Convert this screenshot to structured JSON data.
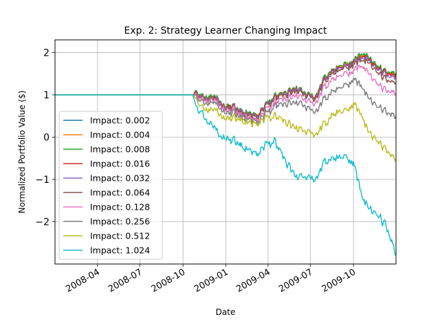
{
  "chart_data": {
    "type": "line",
    "title": "Exp. 2: Strategy Learner Changing Impact",
    "xlabel": "Date",
    "ylabel": "Normalized Portfolio Value ($)",
    "x_range": [
      "2008-01-01",
      "2009-12-31"
    ],
    "ylim": [
      -3.0,
      2.3
    ],
    "x_ticks": [
      {
        "date": "2008-04-01",
        "label": "2008-04"
      },
      {
        "date": "2008-07-01",
        "label": "2008-07"
      },
      {
        "date": "2008-10-01",
        "label": "2008-10"
      },
      {
        "date": "2009-01-01",
        "label": "2009-01"
      },
      {
        "date": "2009-04-01",
        "label": "2009-04"
      },
      {
        "date": "2009-07-01",
        "label": "2009-07"
      },
      {
        "date": "2009-10-01",
        "label": "2009-10"
      }
    ],
    "y_ticks": [
      {
        "value": 2,
        "label": "2"
      },
      {
        "value": 1,
        "label": "1"
      },
      {
        "value": 0,
        "label": "0"
      },
      {
        "value": -1,
        "label": "−1"
      },
      {
        "value": -2,
        "label": "−2"
      }
    ],
    "grid": true,
    "legend_position": "lower-left",
    "series": [
      {
        "name": "Impact: 0.002",
        "color": "#1f77b4",
        "points": [
          [
            "2008-01-01",
            1.0
          ],
          [
            "2008-10-22",
            1.0
          ],
          [
            "2008-10-29",
            1.05
          ],
          [
            "2008-11-10",
            0.95
          ],
          [
            "2008-11-25",
            0.92
          ],
          [
            "2008-12-15",
            0.9
          ],
          [
            "2008-12-31",
            0.72
          ],
          [
            "2009-01-15",
            0.75
          ],
          [
            "2009-02-01",
            0.62
          ],
          [
            "2009-02-20",
            0.55
          ],
          [
            "2009-03-09",
            0.5
          ],
          [
            "2009-03-25",
            0.72
          ],
          [
            "2009-04-15",
            0.95
          ],
          [
            "2009-05-10",
            1.05
          ],
          [
            "2009-06-01",
            1.15
          ],
          [
            "2009-06-20",
            1.0
          ],
          [
            "2009-07-10",
            0.9
          ],
          [
            "2009-08-01",
            1.4
          ],
          [
            "2009-08-20",
            1.6
          ],
          [
            "2009-09-15",
            1.7
          ],
          [
            "2009-10-01",
            1.8
          ],
          [
            "2009-10-20",
            1.95
          ],
          [
            "2009-11-01",
            1.85
          ],
          [
            "2009-11-20",
            1.65
          ],
          [
            "2009-12-10",
            1.52
          ],
          [
            "2009-12-31",
            1.5
          ]
        ]
      },
      {
        "name": "Impact: 0.004",
        "color": "#ff7f0e",
        "points": [
          [
            "2008-01-01",
            1.0
          ],
          [
            "2008-10-22",
            1.0
          ],
          [
            "2008-10-29",
            1.06
          ],
          [
            "2008-11-10",
            0.96
          ],
          [
            "2008-11-25",
            0.93
          ],
          [
            "2008-12-15",
            0.91
          ],
          [
            "2008-12-31",
            0.73
          ],
          [
            "2009-01-15",
            0.76
          ],
          [
            "2009-02-01",
            0.63
          ],
          [
            "2009-02-20",
            0.56
          ],
          [
            "2009-03-09",
            0.51
          ],
          [
            "2009-03-25",
            0.73
          ],
          [
            "2009-04-15",
            0.96
          ],
          [
            "2009-05-10",
            1.06
          ],
          [
            "2009-06-01",
            1.16
          ],
          [
            "2009-06-20",
            1.01
          ],
          [
            "2009-07-10",
            0.91
          ],
          [
            "2009-08-01",
            1.41
          ],
          [
            "2009-08-20",
            1.61
          ],
          [
            "2009-09-15",
            1.71
          ],
          [
            "2009-10-01",
            1.81
          ],
          [
            "2009-10-20",
            1.96
          ],
          [
            "2009-11-01",
            1.86
          ],
          [
            "2009-11-20",
            1.66
          ],
          [
            "2009-12-10",
            1.53
          ],
          [
            "2009-12-31",
            1.51
          ]
        ]
      },
      {
        "name": "Impact: 0.008",
        "color": "#2ca02c",
        "points": [
          [
            "2008-01-01",
            1.0
          ],
          [
            "2008-10-22",
            1.0
          ],
          [
            "2008-10-29",
            1.07
          ],
          [
            "2008-11-10",
            0.97
          ],
          [
            "2008-11-25",
            0.94
          ],
          [
            "2008-12-15",
            0.92
          ],
          [
            "2008-12-31",
            0.74
          ],
          [
            "2009-01-15",
            0.77
          ],
          [
            "2009-02-01",
            0.64
          ],
          [
            "2009-02-20",
            0.57
          ],
          [
            "2009-03-09",
            0.52
          ],
          [
            "2009-03-25",
            0.74
          ],
          [
            "2009-04-15",
            0.97
          ],
          [
            "2009-05-10",
            1.07
          ],
          [
            "2009-06-01",
            1.17
          ],
          [
            "2009-06-20",
            1.02
          ],
          [
            "2009-07-10",
            0.92
          ],
          [
            "2009-08-01",
            1.42
          ],
          [
            "2009-08-20",
            1.62
          ],
          [
            "2009-09-15",
            1.72
          ],
          [
            "2009-10-01",
            1.82
          ],
          [
            "2009-10-20",
            2.0
          ],
          [
            "2009-11-01",
            1.88
          ],
          [
            "2009-11-20",
            1.68
          ],
          [
            "2009-12-10",
            1.55
          ],
          [
            "2009-12-31",
            1.53
          ]
        ]
      },
      {
        "name": "Impact: 0.016",
        "color": "#d62728",
        "points": [
          [
            "2008-01-01",
            1.0
          ],
          [
            "2008-10-22",
            1.0
          ],
          [
            "2008-10-29",
            1.04
          ],
          [
            "2008-11-10",
            0.94
          ],
          [
            "2008-11-25",
            0.91
          ],
          [
            "2008-12-15",
            0.89
          ],
          [
            "2008-12-31",
            0.71
          ],
          [
            "2009-01-15",
            0.74
          ],
          [
            "2009-02-01",
            0.61
          ],
          [
            "2009-02-20",
            0.54
          ],
          [
            "2009-03-09",
            0.49
          ],
          [
            "2009-03-25",
            0.71
          ],
          [
            "2009-04-15",
            0.94
          ],
          [
            "2009-05-10",
            1.04
          ],
          [
            "2009-06-01",
            1.14
          ],
          [
            "2009-06-20",
            0.99
          ],
          [
            "2009-07-10",
            0.89
          ],
          [
            "2009-08-01",
            1.38
          ],
          [
            "2009-08-20",
            1.58
          ],
          [
            "2009-09-15",
            1.68
          ],
          [
            "2009-10-01",
            1.78
          ],
          [
            "2009-10-20",
            1.93
          ],
          [
            "2009-11-01",
            1.83
          ],
          [
            "2009-11-20",
            1.63
          ],
          [
            "2009-12-10",
            1.5
          ],
          [
            "2009-12-31",
            1.47
          ]
        ]
      },
      {
        "name": "Impact: 0.032",
        "color": "#9467bd",
        "points": [
          [
            "2008-01-01",
            1.0
          ],
          [
            "2008-10-22",
            1.0
          ],
          [
            "2008-10-29",
            1.03
          ],
          [
            "2008-11-10",
            0.93
          ],
          [
            "2008-11-25",
            0.9
          ],
          [
            "2008-12-15",
            0.88
          ],
          [
            "2008-12-31",
            0.7
          ],
          [
            "2009-01-15",
            0.73
          ],
          [
            "2009-02-01",
            0.6
          ],
          [
            "2009-02-20",
            0.53
          ],
          [
            "2009-03-09",
            0.48
          ],
          [
            "2009-03-25",
            0.7
          ],
          [
            "2009-04-15",
            0.93
          ],
          [
            "2009-05-10",
            1.03
          ],
          [
            "2009-06-01",
            1.13
          ],
          [
            "2009-06-20",
            0.98
          ],
          [
            "2009-07-10",
            0.88
          ],
          [
            "2009-08-01",
            1.36
          ],
          [
            "2009-08-20",
            1.56
          ],
          [
            "2009-09-15",
            1.66
          ],
          [
            "2009-10-01",
            1.76
          ],
          [
            "2009-10-20",
            1.9
          ],
          [
            "2009-11-01",
            1.8
          ],
          [
            "2009-11-20",
            1.6
          ],
          [
            "2009-12-10",
            1.46
          ],
          [
            "2009-12-31",
            1.42
          ]
        ]
      },
      {
        "name": "Impact: 0.064",
        "color": "#8c564b",
        "points": [
          [
            "2008-01-01",
            1.0
          ],
          [
            "2008-10-22",
            1.0
          ],
          [
            "2008-10-29",
            1.02
          ],
          [
            "2008-11-10",
            0.92
          ],
          [
            "2008-11-25",
            0.88
          ],
          [
            "2008-12-15",
            0.86
          ],
          [
            "2008-12-31",
            0.68
          ],
          [
            "2009-01-15",
            0.71
          ],
          [
            "2009-02-01",
            0.58
          ],
          [
            "2009-02-20",
            0.51
          ],
          [
            "2009-03-09",
            0.46
          ],
          [
            "2009-03-25",
            0.68
          ],
          [
            "2009-04-15",
            0.9
          ],
          [
            "2009-05-10",
            1.0
          ],
          [
            "2009-06-01",
            1.1
          ],
          [
            "2009-06-20",
            0.95
          ],
          [
            "2009-07-10",
            0.85
          ],
          [
            "2009-08-01",
            1.32
          ],
          [
            "2009-08-20",
            1.52
          ],
          [
            "2009-09-15",
            1.62
          ],
          [
            "2009-10-01",
            1.72
          ],
          [
            "2009-10-20",
            1.85
          ],
          [
            "2009-11-01",
            1.74
          ],
          [
            "2009-11-20",
            1.52
          ],
          [
            "2009-12-10",
            1.36
          ],
          [
            "2009-12-31",
            1.3
          ]
        ]
      },
      {
        "name": "Impact: 0.128",
        "color": "#e377c2",
        "points": [
          [
            "2008-01-01",
            1.0
          ],
          [
            "2008-10-22",
            1.0
          ],
          [
            "2008-10-29",
            0.98
          ],
          [
            "2008-11-10",
            0.88
          ],
          [
            "2008-11-25",
            0.84
          ],
          [
            "2008-12-15",
            0.82
          ],
          [
            "2008-12-31",
            0.64
          ],
          [
            "2009-01-15",
            0.66
          ],
          [
            "2009-02-01",
            0.54
          ],
          [
            "2009-02-20",
            0.46
          ],
          [
            "2009-03-09",
            0.4
          ],
          [
            "2009-03-25",
            0.6
          ],
          [
            "2009-04-15",
            0.82
          ],
          [
            "2009-05-10",
            0.9
          ],
          [
            "2009-06-01",
            0.98
          ],
          [
            "2009-06-20",
            0.84
          ],
          [
            "2009-07-10",
            0.74
          ],
          [
            "2009-08-01",
            1.18
          ],
          [
            "2009-08-20",
            1.38
          ],
          [
            "2009-09-15",
            1.48
          ],
          [
            "2009-10-01",
            1.58
          ],
          [
            "2009-10-20",
            1.7
          ],
          [
            "2009-11-01",
            1.5
          ],
          [
            "2009-11-20",
            1.25
          ],
          [
            "2009-12-10",
            1.1
          ],
          [
            "2009-12-31",
            1.05
          ]
        ]
      },
      {
        "name": "Impact: 0.256",
        "color": "#7f7f7f",
        "points": [
          [
            "2008-01-01",
            1.0
          ],
          [
            "2008-10-22",
            1.0
          ],
          [
            "2008-10-29",
            0.95
          ],
          [
            "2008-11-10",
            0.82
          ],
          [
            "2008-11-25",
            0.78
          ],
          [
            "2008-12-15",
            0.75
          ],
          [
            "2008-12-31",
            0.58
          ],
          [
            "2009-01-15",
            0.6
          ],
          [
            "2009-02-01",
            0.48
          ],
          [
            "2009-02-20",
            0.42
          ],
          [
            "2009-03-09",
            0.35
          ],
          [
            "2009-03-25",
            0.52
          ],
          [
            "2009-04-15",
            0.72
          ],
          [
            "2009-05-10",
            0.78
          ],
          [
            "2009-06-01",
            0.82
          ],
          [
            "2009-06-20",
            0.68
          ],
          [
            "2009-07-10",
            0.55
          ],
          [
            "2009-08-01",
            0.9
          ],
          [
            "2009-08-20",
            1.1
          ],
          [
            "2009-09-15",
            1.2
          ],
          [
            "2009-10-01",
            1.38
          ],
          [
            "2009-10-20",
            1.2
          ],
          [
            "2009-11-01",
            0.9
          ],
          [
            "2009-11-20",
            0.72
          ],
          [
            "2009-12-10",
            0.6
          ],
          [
            "2009-12-31",
            0.5
          ]
        ]
      },
      {
        "name": "Impact: 0.512",
        "color": "#bcbd22",
        "points": [
          [
            "2008-01-01",
            1.0
          ],
          [
            "2008-10-22",
            1.0
          ],
          [
            "2008-10-29",
            0.88
          ],
          [
            "2008-11-10",
            0.7
          ],
          [
            "2008-11-25",
            0.62
          ],
          [
            "2008-12-15",
            0.6
          ],
          [
            "2008-12-31",
            0.45
          ],
          [
            "2009-01-15",
            0.47
          ],
          [
            "2009-02-01",
            0.4
          ],
          [
            "2009-02-20",
            0.35
          ],
          [
            "2009-03-09",
            0.3
          ],
          [
            "2009-03-25",
            0.42
          ],
          [
            "2009-04-15",
            0.5
          ],
          [
            "2009-05-10",
            0.35
          ],
          [
            "2009-06-01",
            0.2
          ],
          [
            "2009-06-20",
            0.1
          ],
          [
            "2009-07-10",
            0.02
          ],
          [
            "2009-08-01",
            0.3
          ],
          [
            "2009-08-20",
            0.55
          ],
          [
            "2009-09-15",
            0.6
          ],
          [
            "2009-10-01",
            0.8
          ],
          [
            "2009-10-20",
            0.5
          ],
          [
            "2009-11-01",
            0.1
          ],
          [
            "2009-11-20",
            -0.1
          ],
          [
            "2009-12-10",
            -0.3
          ],
          [
            "2009-12-31",
            -0.52
          ]
        ]
      },
      {
        "name": "Impact: 1.024",
        "color": "#17becf",
        "points": [
          [
            "2008-01-01",
            1.0
          ],
          [
            "2008-10-22",
            1.0
          ],
          [
            "2008-10-29",
            0.7
          ],
          [
            "2008-11-10",
            0.55
          ],
          [
            "2008-11-25",
            0.32
          ],
          [
            "2008-12-15",
            0.1
          ],
          [
            "2008-12-31",
            -0.02
          ],
          [
            "2009-01-15",
            -0.05
          ],
          [
            "2009-02-01",
            -0.2
          ],
          [
            "2009-02-20",
            -0.3
          ],
          [
            "2009-03-09",
            -0.42
          ],
          [
            "2009-03-25",
            -0.2
          ],
          [
            "2009-04-15",
            -0.1
          ],
          [
            "2009-05-10",
            -0.6
          ],
          [
            "2009-06-01",
            -0.95
          ],
          [
            "2009-06-20",
            -0.98
          ],
          [
            "2009-07-10",
            -1.05
          ],
          [
            "2009-08-01",
            -0.6
          ],
          [
            "2009-08-20",
            -0.5
          ],
          [
            "2009-09-15",
            -0.5
          ],
          [
            "2009-10-01",
            -0.6
          ],
          [
            "2009-10-20",
            -1.4
          ],
          [
            "2009-11-01",
            -1.7
          ],
          [
            "2009-11-20",
            -1.85
          ],
          [
            "2009-12-10",
            -2.1
          ],
          [
            "2009-12-31",
            -2.75
          ]
        ]
      }
    ]
  }
}
